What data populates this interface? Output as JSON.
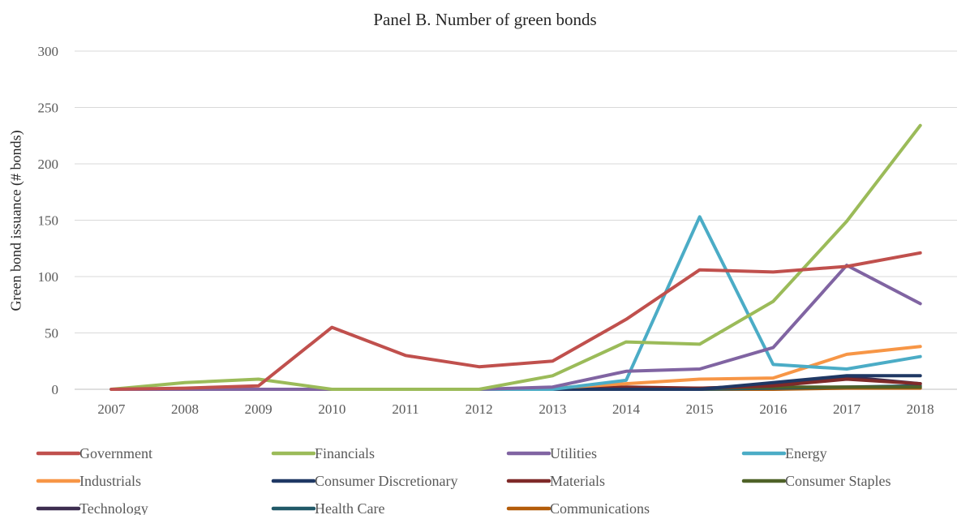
{
  "chart_data": {
    "type": "line",
    "title": "Panel B. Number of green bonds",
    "xlabel": "",
    "ylabel": "Green bond issuance (# bonds)",
    "ylim": [
      0,
      300
    ],
    "yticks": [
      "0",
      "50",
      "100",
      "150",
      "200",
      "250",
      "300"
    ],
    "grid": "horizontal",
    "legend_position": "bottom",
    "categories": [
      "2007",
      "2008",
      "2009",
      "2010",
      "2011",
      "2012",
      "2013",
      "2014",
      "2015",
      "2016",
      "2017",
      "2018"
    ],
    "series": [
      {
        "name": "Government",
        "color": "#c0504d",
        "values": [
          0,
          1,
          3,
          55,
          30,
          20,
          25,
          62,
          106,
          104,
          109,
          121
        ]
      },
      {
        "name": "Financials",
        "color": "#9bbb59",
        "values": [
          0,
          6,
          9,
          0,
          0,
          0,
          12,
          42,
          40,
          78,
          149,
          234
        ]
      },
      {
        "name": "Utilities",
        "color": "#8064a2",
        "values": [
          0,
          0,
          0,
          0,
          0,
          0,
          2,
          16,
          18,
          37,
          110,
          76
        ]
      },
      {
        "name": "Energy",
        "color": "#4bacc6",
        "values": [
          0,
          0,
          0,
          0,
          0,
          0,
          0,
          8,
          153,
          22,
          18,
          29
        ]
      },
      {
        "name": "Industrials",
        "color": "#f79646",
        "values": [
          0,
          0,
          0,
          0,
          0,
          0,
          1,
          5,
          9,
          10,
          31,
          38
        ]
      },
      {
        "name": "Consumer Discretionary",
        "color": "#1f3864",
        "values": [
          0,
          0,
          0,
          0,
          0,
          0,
          0,
          0,
          0,
          6,
          12,
          12
        ]
      },
      {
        "name": "Materials",
        "color": "#7f2a29",
        "values": [
          0,
          0,
          0,
          0,
          0,
          0,
          0,
          2,
          1,
          3,
          9,
          5
        ]
      },
      {
        "name": "Consumer Staples",
        "color": "#4f6228",
        "values": [
          0,
          0,
          0,
          0,
          0,
          0,
          0,
          1,
          1,
          2,
          2,
          2
        ]
      },
      {
        "name": "Technology",
        "color": "#3d2e50",
        "values": [
          0,
          0,
          0,
          0,
          0,
          0,
          0,
          0,
          0,
          5,
          11,
          5
        ]
      },
      {
        "name": "Health Care",
        "color": "#215968",
        "values": [
          0,
          0,
          0,
          0,
          0,
          0,
          0,
          0,
          0,
          1,
          2,
          3
        ]
      },
      {
        "name": "Communications",
        "color": "#b35c0a",
        "values": [
          0,
          0,
          0,
          0,
          0,
          0,
          0,
          0,
          0,
          0,
          1,
          1
        ]
      }
    ]
  }
}
